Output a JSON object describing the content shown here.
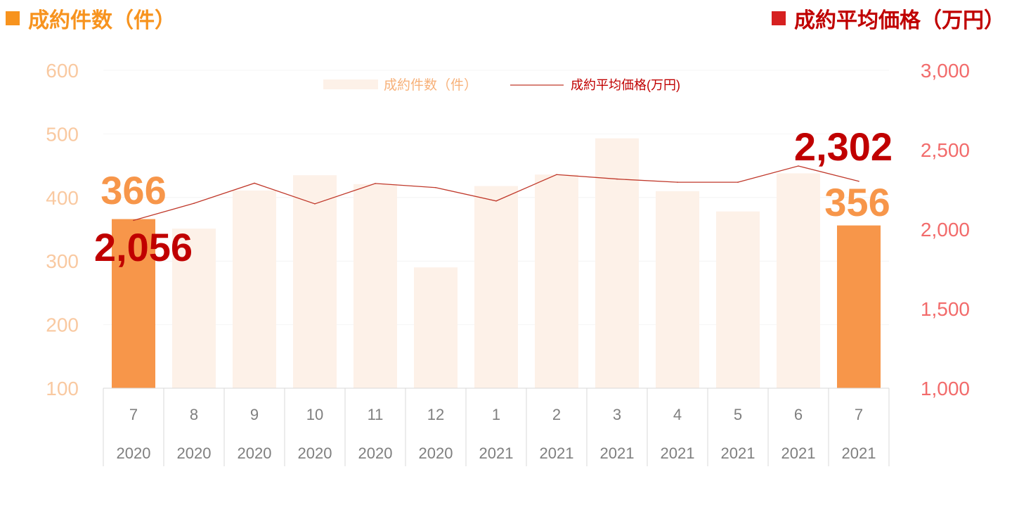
{
  "header": {
    "left_title": "成約件数（件）",
    "right_title": "成約平均価格（万円）"
  },
  "legend": {
    "count": "成約件数（件）",
    "price": "成約平均価格(万円)"
  },
  "colors": {
    "bar_highlight": "#F7964A",
    "bar_faded": "#FDF1E8",
    "line": "#C0392B",
    "title_count": "#F7931E",
    "title_price": "#C00000"
  },
  "chart_data": {
    "type": "bar",
    "categories": [
      "7",
      "8",
      "9",
      "10",
      "11",
      "12",
      "1",
      "2",
      "3",
      "4",
      "5",
      "6",
      "7"
    ],
    "years": [
      "2020",
      "2020",
      "2020",
      "2020",
      "2020",
      "2020",
      "2021",
      "2021",
      "2021",
      "2021",
      "2021",
      "2021",
      "2021"
    ],
    "series": [
      {
        "name": "成約件数（件）",
        "type": "bar",
        "axis": "left",
        "values": [
          366,
          351,
          411,
          435,
          421,
          290,
          418,
          436,
          493,
          410,
          378,
          438,
          356
        ],
        "highlighted_indices": [
          0,
          12
        ]
      },
      {
        "name": "成約平均価格(万円)",
        "type": "line",
        "axis": "right",
        "values": [
          2056,
          2163,
          2290,
          2160,
          2288,
          2262,
          2178,
          2344,
          2316,
          2296,
          2296,
          2398,
          2302
        ]
      }
    ],
    "left_axis": {
      "ticks": [
        "100",
        "200",
        "300",
        "400",
        "500",
        "600"
      ],
      "range": [
        100,
        600
      ]
    },
    "right_axis": {
      "ticks": [
        "1,000",
        "1,500",
        "2,000",
        "2,500",
        "3,000"
      ],
      "range": [
        1000,
        3000
      ]
    },
    "annotations": {
      "count_first": "366",
      "count_last": "356",
      "price_first": "2,056",
      "price_last": "2,302"
    },
    "grid": true,
    "legend_position": "top-center"
  }
}
